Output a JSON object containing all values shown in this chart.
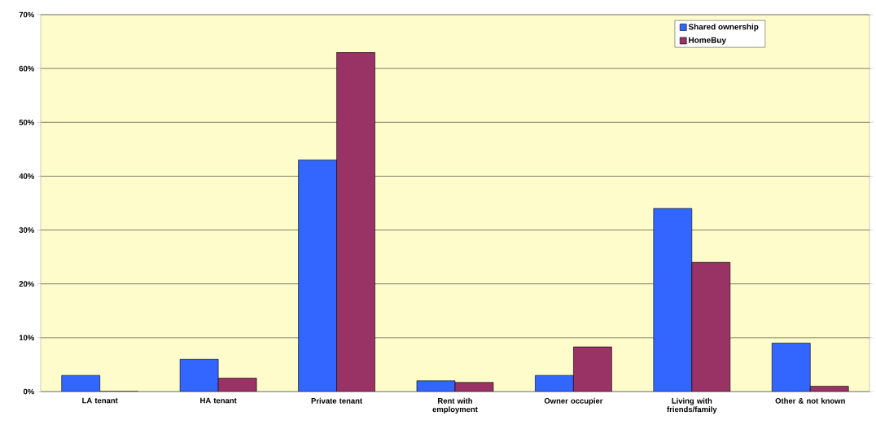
{
  "chart_data": {
    "type": "bar",
    "categories": [
      "LA tenant",
      "HA tenant",
      "Private tenant",
      "Rent with employment",
      "Owner occupier",
      "Living with friends/family",
      "Other & not known"
    ],
    "series": [
      {
        "name": "Shared ownership",
        "color": "#3366ff",
        "values": [
          3,
          6,
          43,
          2,
          3,
          34,
          9
        ]
      },
      {
        "name": "HomeBuy",
        "color": "#993366",
        "values": [
          0,
          2.5,
          63,
          1.7,
          8.3,
          24,
          1
        ]
      }
    ],
    "ylim": [
      0,
      70
    ],
    "yticks": [
      {
        "value": 0,
        "label": "0%"
      },
      {
        "value": 10,
        "label": "10%"
      },
      {
        "value": 20,
        "label": "20%"
      },
      {
        "value": 30,
        "label": "30%"
      },
      {
        "value": 40,
        "label": "40%"
      },
      {
        "value": 50,
        "label": "50%"
      },
      {
        "value": 60,
        "label": "60%"
      },
      {
        "value": 70,
        "label": "70%"
      }
    ],
    "grid": "y",
    "legend": "top right"
  }
}
